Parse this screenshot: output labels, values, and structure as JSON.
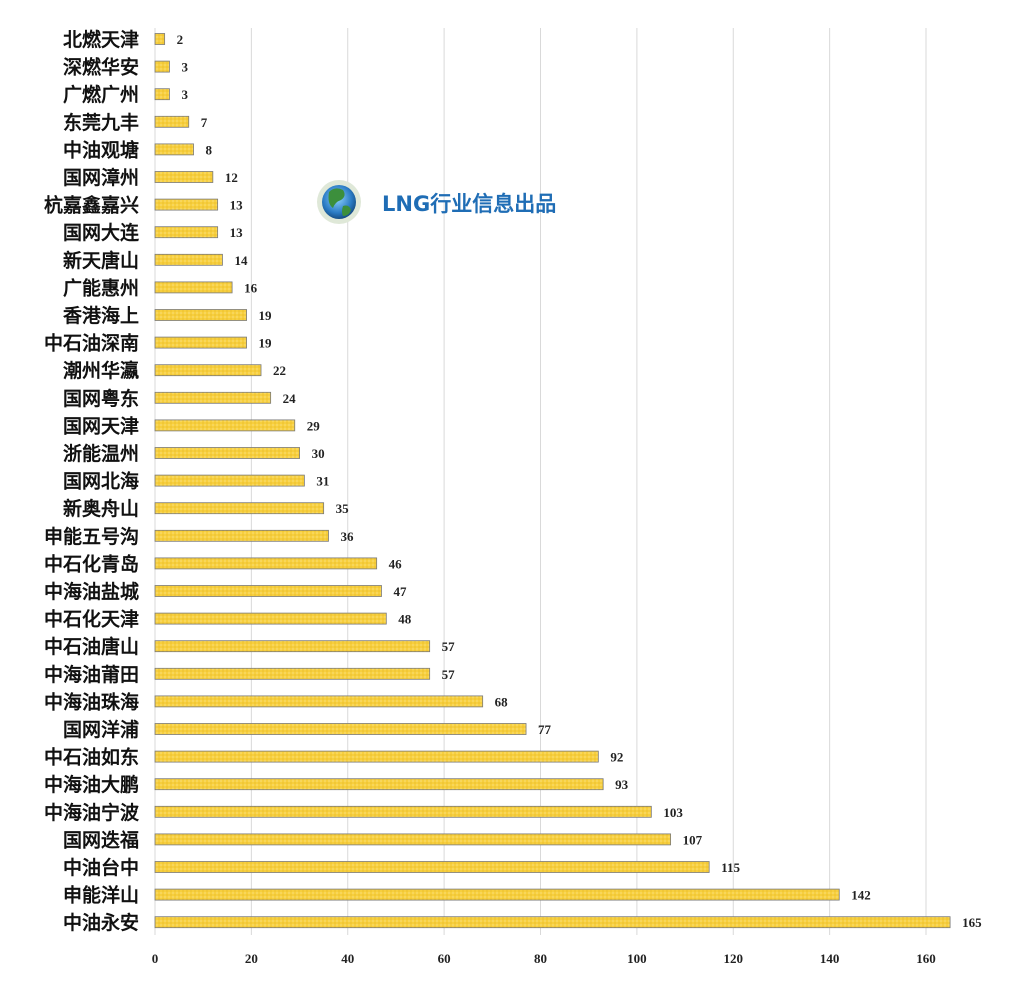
{
  "chart_data": {
    "type": "bar",
    "orientation": "horizontal",
    "title": "",
    "xlabel": "",
    "ylabel": "",
    "xlim": [
      0,
      165
    ],
    "x_ticks": [
      0,
      20,
      40,
      60,
      80,
      100,
      120,
      140,
      160
    ],
    "grid": "vertical",
    "legend": "none",
    "bar_color": "#f7cf3e",
    "categories": [
      "北燃天津",
      "深燃华安",
      "广燃广州",
      "东莞九丰",
      "中油观塘",
      "国网漳州",
      "杭嘉鑫嘉兴",
      "国网大连",
      "新天唐山",
      "广能惠州",
      "香港海上",
      "中石油深南",
      "潮州华瀛",
      "国网粤东",
      "国网天津",
      "浙能温州",
      "国网北海",
      "新奥舟山",
      "申能五号沟",
      "中石化青岛",
      "中海油盐城",
      "中石化天津",
      "中石油唐山",
      "中海油莆田",
      "中海油珠海",
      "国网洋浦",
      "中石油如东",
      "中海油大鹏",
      "中海油宁波",
      "国网迭福",
      "中油台中",
      "申能洋山",
      "中油永安"
    ],
    "values": [
      2,
      3,
      3,
      7,
      8,
      12,
      13,
      13,
      14,
      16,
      19,
      19,
      22,
      24,
      29,
      30,
      31,
      35,
      36,
      46,
      47,
      48,
      57,
      57,
      68,
      77,
      92,
      93,
      103,
      107,
      115,
      142,
      165
    ]
  },
  "watermark": {
    "text": "LNG行业信息出品",
    "icon": "globe-logo-icon",
    "color": "#1f6db5"
  }
}
